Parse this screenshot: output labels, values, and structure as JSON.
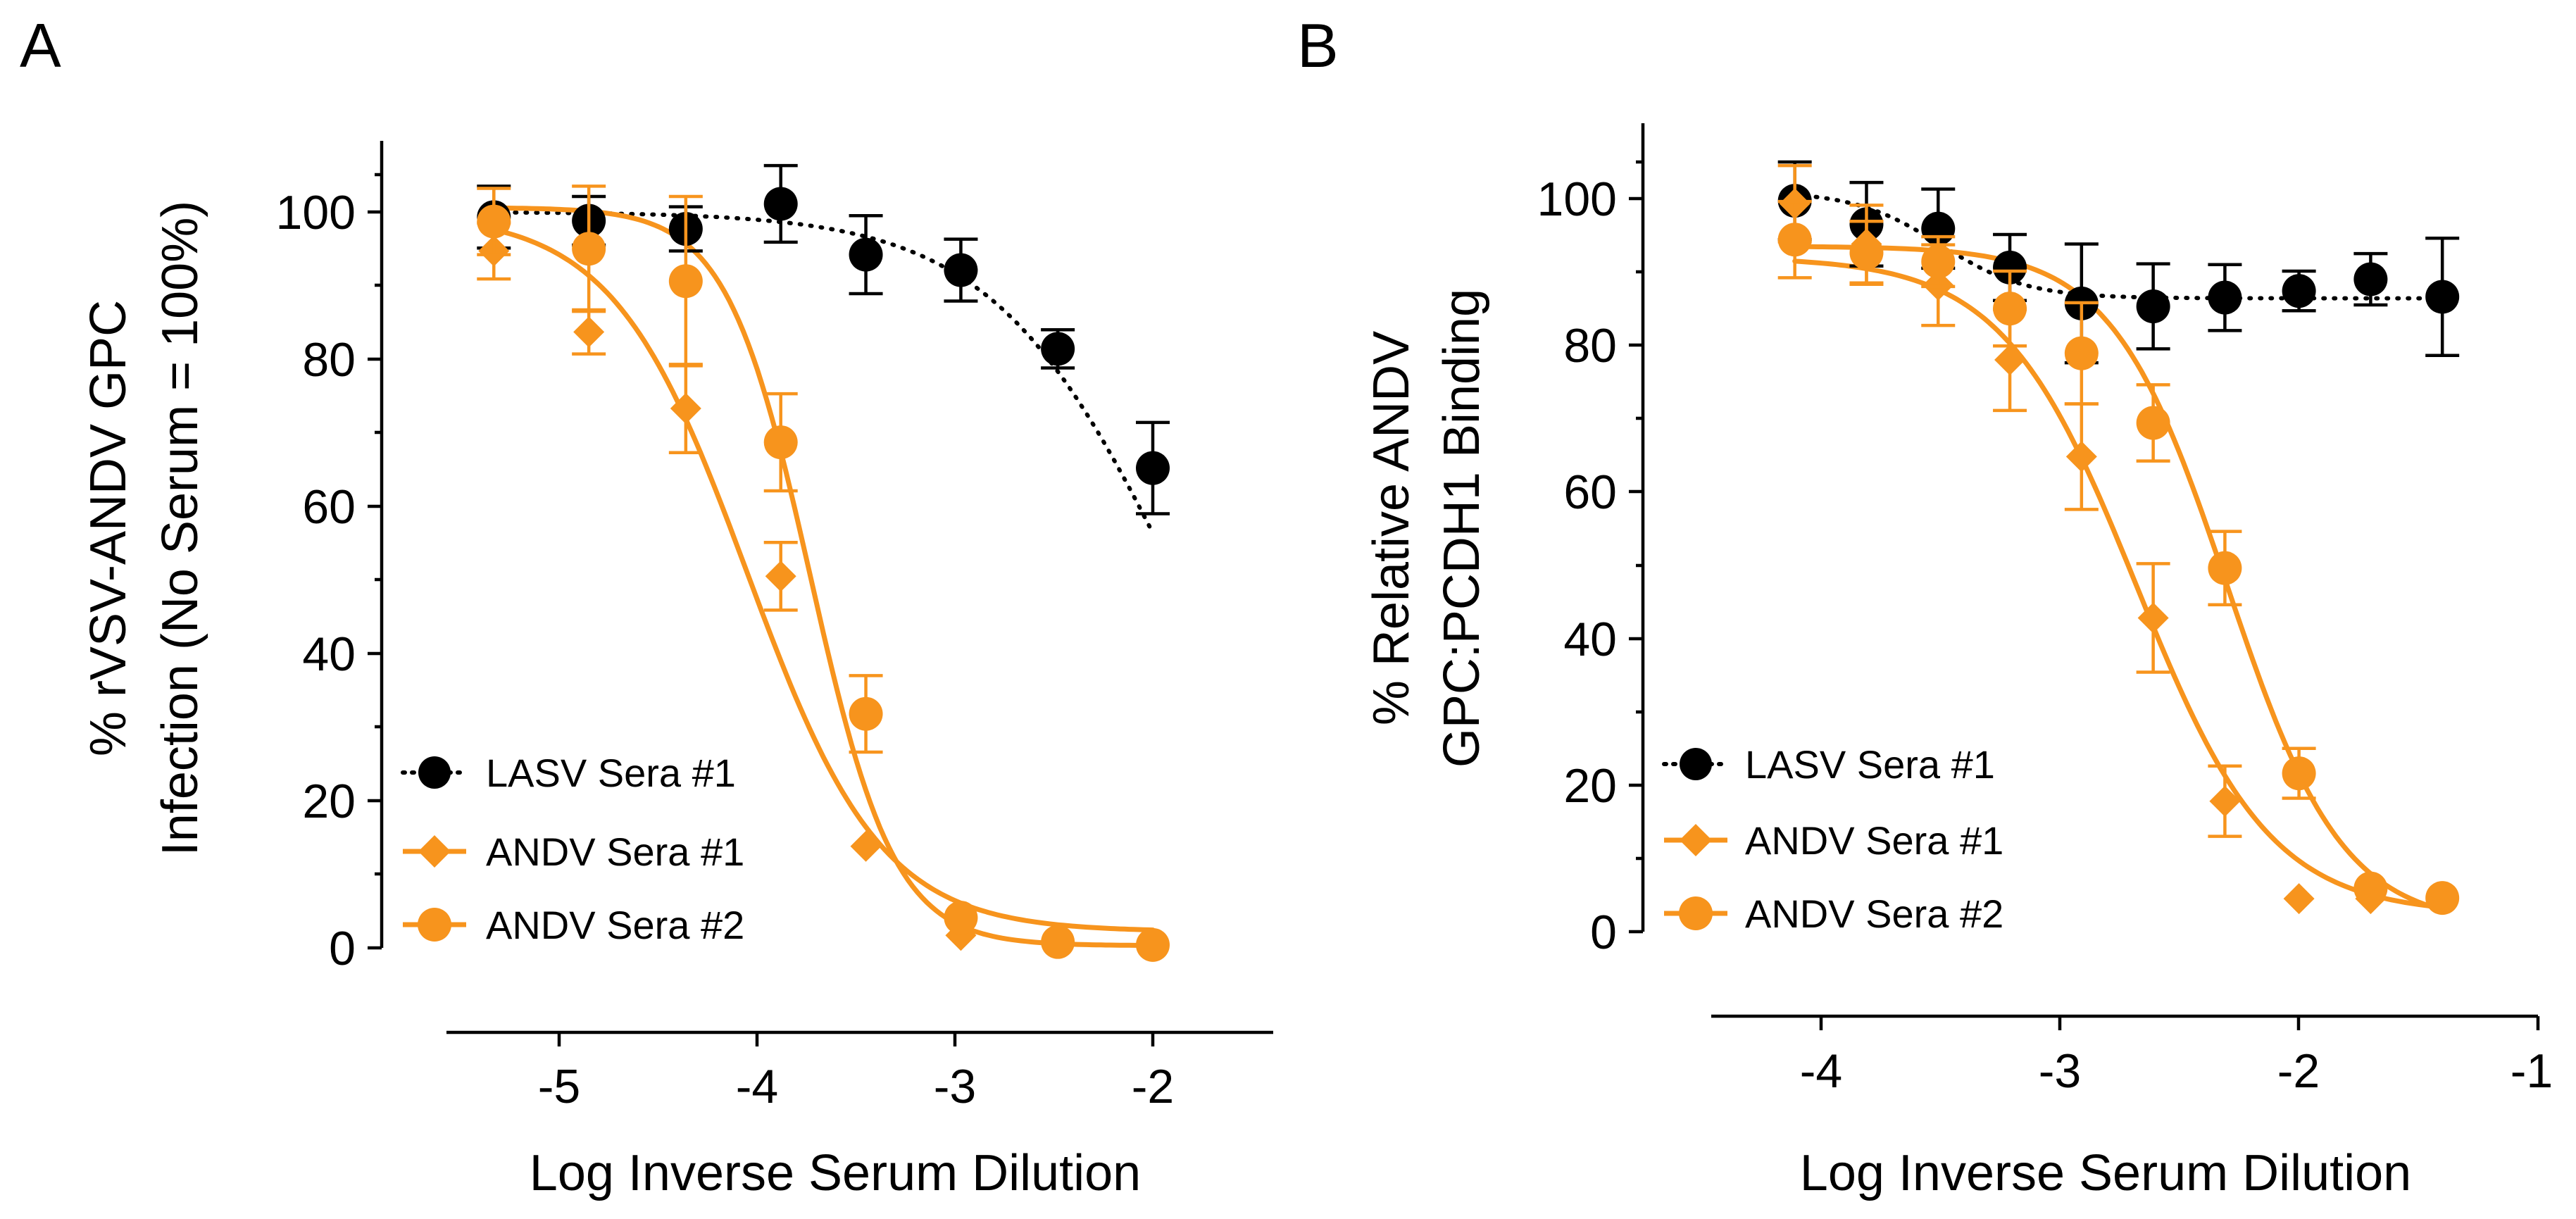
{
  "colors": {
    "lasv": "#000000",
    "andv": "#F7941D"
  },
  "chart_data": [
    {
      "panel": "A",
      "type": "line",
      "ylabel_lines": [
        "% rVSV-ANDV GPC",
        "Infection (No Serum = 100%)"
      ],
      "xlabel": "Log Inverse Serum Dilution",
      "xlim": [
        -5.6,
        -1.5
      ],
      "ylim": [
        0,
        110
      ],
      "x_ticks": [
        -5,
        -4,
        -3,
        -2
      ],
      "x_tick_labels": [
        "-5",
        "-4",
        "-3",
        "-2"
      ],
      "y_ticks": [
        0,
        20,
        40,
        60,
        80,
        100
      ],
      "y_tick_labels": [
        "0",
        "20",
        "40",
        "60",
        "80",
        "100"
      ],
      "legend_position": "bottom-left",
      "series": [
        {
          "name": "LASV Sera #1",
          "marker": "circle",
          "color": "#000000",
          "line": "dotted",
          "x": [
            -5.33,
            -4.85,
            -4.36,
            -3.88,
            -3.45,
            -2.97,
            -2.48,
            -2.0
          ],
          "y": [
            99.3,
            98.8,
            97.7,
            101.1,
            94.2,
            92.1,
            81.4,
            65.2
          ],
          "err": [
            4.2,
            3.3,
            3.0,
            5.2,
            5.3,
            4.2,
            2.6,
            6.2
          ],
          "fit": {
            "bottom": 0,
            "top": 100,
            "logic50": -1.88,
            "hill": -0.93,
            "xmin": -5.33,
            "xmax": -2.0
          }
        },
        {
          "name": "ANDV Sera #1",
          "marker": "diamond",
          "color": "#F7941D",
          "line": "solid",
          "x": [
            -5.33,
            -4.85,
            -4.36,
            -3.88,
            -3.45,
            -2.97
          ],
          "y": [
            94.7,
            83.7,
            73.3,
            50.5,
            13.8,
            1.7
          ],
          "err": [
            3.8,
            3.0,
            6.0,
            4.6,
            0,
            0
          ],
          "fit": {
            "bottom": 2.2,
            "top": 99.8,
            "logic50": -4.05,
            "hill": -1.28,
            "xmin": -5.33,
            "xmax": -2.0
          }
        },
        {
          "name": "ANDV Sera #2",
          "marker": "circle",
          "color": "#F7941D",
          "line": "solid",
          "x": [
            -5.33,
            -4.85,
            -4.36,
            -3.88,
            -3.45,
            -2.97,
            -2.48,
            -2.0
          ],
          "y": [
            98.7,
            95.0,
            90.6,
            68.7,
            31.8,
            4.1,
            0.8,
            0.4
          ],
          "err": [
            4.5,
            8.5,
            11.5,
            6.6,
            5.2,
            0,
            0,
            0
          ],
          "fit": {
            "bottom": 0.3,
            "top": 100.6,
            "logic50": -3.73,
            "hill": -2.05,
            "xmin": -5.33,
            "xmax": -2.0
          }
        }
      ]
    },
    {
      "panel": "B",
      "type": "line",
      "ylabel_lines": [
        "% Relative ANDV",
        "GPC:PCDH1 Binding"
      ],
      "xlabel": "Log Inverse Serum Dilution",
      "xlim": [
        -4.5,
        -1.0
      ],
      "ylim": [
        0,
        110
      ],
      "x_ticks": [
        -4,
        -3,
        -2,
        -1
      ],
      "x_tick_labels": [
        "-4",
        "-3",
        "-2",
        "-1"
      ],
      "y_ticks": [
        0,
        20,
        40,
        60,
        80,
        100
      ],
      "y_tick_labels": [
        "0",
        "20",
        "40",
        "60",
        "80",
        "100"
      ],
      "legend_position": "bottom-left",
      "series": [
        {
          "name": "LASV Sera #1",
          "marker": "circle",
          "color": "#000000",
          "line": "dotted",
          "x": [
            -4.11,
            -3.81,
            -3.51,
            -3.21,
            -2.91,
            -2.61,
            -2.31,
            -2.0,
            -1.7,
            -1.4
          ],
          "y": [
            99.7,
            96.5,
            95.9,
            90.6,
            85.7,
            85.3,
            86.5,
            87.4,
            89.0,
            86.6
          ],
          "err": [
            5.3,
            5.7,
            5.4,
            4.5,
            8.1,
            5.8,
            4.5,
            2.7,
            3.5,
            8.0
          ],
          "fit": {
            "bottom": 86.4,
            "top": 101,
            "logic50": -3.5,
            "hill": -2.4,
            "xmin": -4.11,
            "xmax": -1.4
          }
        },
        {
          "name": "ANDV Sera #1",
          "marker": "diamond",
          "color": "#F7941D",
          "line": "solid",
          "x": [
            -4.11,
            -3.81,
            -3.51,
            -3.21,
            -2.91,
            -2.61,
            -2.31,
            -2.0,
            -1.7
          ],
          "y": [
            99.3,
            93.8,
            88.2,
            78.0,
            64.8,
            42.8,
            17.8,
            4.5,
            4.5
          ],
          "err": [
            5.2,
            5.3,
            5.5,
            6.9,
            7.2,
            7.4,
            4.8,
            0,
            0
          ],
          "fit": {
            "bottom": 2.4,
            "top": 92.0,
            "logic50": -2.68,
            "hill": -1.55,
            "xmin": -4.11,
            "xmax": -1.4
          }
        },
        {
          "name": "ANDV Sera #2",
          "marker": "circle",
          "color": "#F7941D",
          "line": "solid",
          "x": [
            -4.11,
            -3.81,
            -3.51,
            -3.21,
            -2.91,
            -2.61,
            -2.31,
            -2.0,
            -1.7,
            -1.4
          ],
          "y": [
            94.4,
            92.6,
            91.4,
            85.0,
            78.9,
            69.4,
            49.6,
            21.6,
            5.9,
            4.6
          ],
          "err": [
            5.2,
            4.3,
            3.4,
            5.1,
            6.9,
            5.2,
            5.0,
            3.4,
            0,
            0
          ],
          "fit": {
            "bottom": 0.8,
            "top": 93.5,
            "logic50": -2.3,
            "hill": -1.8,
            "xmin": -4.11,
            "xmax": -1.4
          }
        }
      ]
    }
  ]
}
